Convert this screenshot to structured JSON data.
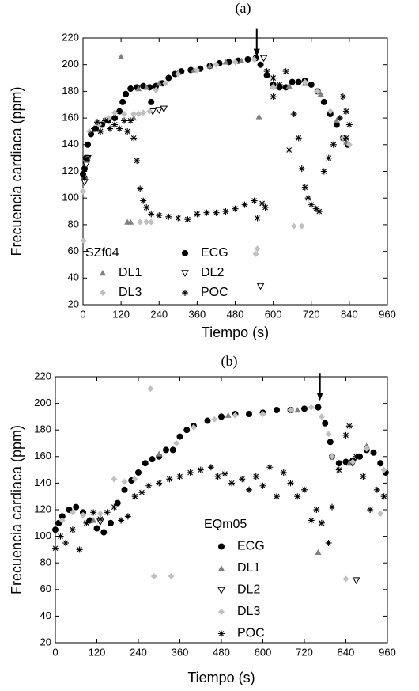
{
  "chart_data": [
    {
      "type": "scatter",
      "title": "(a)",
      "x_label": "Tiempo (s)",
      "y_label": "Frecuencia cardiaca (ppm)",
      "legend_title": "SZf04",
      "legend_columns": 2,
      "xlim": [
        0,
        960
      ],
      "xticks": [
        0,
        120,
        240,
        360,
        480,
        600,
        720,
        840,
        960
      ],
      "ylim": [
        20,
        220
      ],
      "yticks": [
        20,
        40,
        60,
        80,
        100,
        120,
        140,
        160,
        180,
        200,
        220
      ],
      "arrow": {
        "x": 548,
        "y": 206
      },
      "series": [
        {
          "name": "ECG",
          "color": "#000000",
          "marker": "circle",
          "x": [
            0,
            5,
            10,
            15,
            25,
            40,
            60,
            80,
            100,
            115,
            125,
            135,
            150,
            170,
            190,
            210,
            215,
            230,
            250,
            270,
            290,
            310,
            340,
            370,
            400,
            430,
            460,
            490,
            520,
            545,
            560,
            580,
            600,
            620,
            640,
            660,
            680,
            700,
            720,
            740,
            760,
            780,
            800,
            820,
            835
          ],
          "values": [
            118,
            122,
            130,
            140,
            148,
            152,
            155,
            158,
            160,
            165,
            172,
            178,
            182,
            183,
            184,
            183,
            172,
            184,
            186,
            190,
            193,
            195,
            196,
            197,
            199,
            201,
            202,
            203,
            204,
            205,
            200,
            192,
            185,
            183,
            183,
            187,
            187,
            188,
            185,
            180,
            172,
            163,
            155,
            145,
            140
          ]
        },
        {
          "name": "DL1",
          "color": "#808080",
          "marker": "triangle",
          "x": [
            120,
            140,
            150,
            160,
            175,
            200,
            240,
            300,
            350,
            400,
            450,
            500,
            555,
            600,
            650,
            700,
            750,
            800,
            830
          ],
          "values": [
            206,
            82,
            82,
            160,
            182,
            183,
            186,
            194,
            196,
            199,
            202,
            203,
            161,
            184,
            184,
            186,
            178,
            158,
            142
          ]
        },
        {
          "name": "DL2",
          "color": "#000000",
          "marker": "triangle-down",
          "x": [
            5,
            10,
            15,
            220,
            240,
            255,
            570,
            560
          ],
          "values": [
            112,
            125,
            130,
            165,
            166,
            167,
            205,
            34
          ]
        },
        {
          "name": "DL3",
          "color": "#c0c0c0",
          "marker": "diamond",
          "x": [
            0,
            2,
            20,
            50,
            80,
            100,
            130,
            160,
            175,
            180,
            190,
            200,
            210,
            215,
            230,
            260,
            300,
            360,
            420,
            480,
            540,
            545,
            550,
            600,
            665,
            690,
            700,
            740,
            780,
            820,
            840
          ],
          "values": [
            105,
            68,
            150,
            155,
            160,
            164,
            163,
            163,
            163,
            82,
            164,
            82,
            165,
            82,
            181,
            186,
            193,
            196,
            200,
            202,
            204,
            58,
            62,
            183,
            79,
            79,
            187,
            180,
            165,
            145,
            140
          ]
        },
        {
          "name": "POC",
          "color": "#000000",
          "marker": "asterisk",
          "x": [
            5,
            15,
            25,
            35,
            45,
            55,
            70,
            85,
            100,
            115,
            130,
            140,
            150,
            160,
            170,
            180,
            190,
            200,
            215,
            240,
            270,
            300,
            330,
            360,
            390,
            420,
            450,
            480,
            510,
            540,
            550,
            565,
            575,
            580,
            600,
            600,
            620,
            640,
            650,
            665,
            680,
            690,
            700,
            710,
            720,
            735,
            745,
            760,
            775,
            790,
            810,
            820,
            830,
            840,
            830
          ],
          "values": [
            115,
            130,
            148,
            152,
            157,
            150,
            158,
            152,
            155,
            152,
            158,
            150,
            158,
            145,
            128,
            107,
            98,
            93,
            88,
            87,
            86,
            85,
            84,
            88,
            89,
            89,
            90,
            92,
            95,
            98,
            85,
            96,
            93,
            195,
            190,
            176,
            185,
            195,
            136,
            163,
            145,
            122,
            108,
            100,
            95,
            92,
            90,
            120,
            130,
            140,
            160,
            176,
            165,
            155,
            145
          ]
        }
      ]
    },
    {
      "type": "scatter",
      "title": "(b)",
      "x_label": "Tiempo (s)",
      "y_label": "Frecuencia cardiaca (ppm)",
      "legend_title": "EQm05",
      "legend_columns": 1,
      "xlim": [
        0,
        960
      ],
      "xticks": [
        0,
        120,
        240,
        360,
        480,
        600,
        720,
        840,
        960
      ],
      "ylim": [
        20,
        220
      ],
      "yticks": [
        20,
        40,
        60,
        80,
        100,
        120,
        140,
        160,
        180,
        200,
        220
      ],
      "arrow": {
        "x": 765,
        "y": 202
      },
      "series": [
        {
          "name": "ECG",
          "color": "#000000",
          "marker": "circle",
          "x": [
            0,
            10,
            20,
            40,
            60,
            80,
            100,
            120,
            140,
            160,
            180,
            200,
            220,
            240,
            260,
            280,
            300,
            320,
            340,
            360,
            380,
            400,
            440,
            480,
            520,
            560,
            600,
            640,
            680,
            720,
            760,
            780,
            795,
            800,
            820,
            840,
            860,
            880,
            900,
            920,
            940,
            955
          ],
          "values": [
            105,
            110,
            115,
            120,
            122,
            118,
            112,
            106,
            103,
            110,
            125,
            135,
            142,
            148,
            155,
            158,
            160,
            165,
            165,
            175,
            180,
            183,
            187,
            190,
            192,
            192,
            193,
            195,
            195,
            196,
            197,
            185,
            171,
            160,
            155,
            156,
            157,
            160,
            165,
            163,
            155,
            148
          ]
        },
        {
          "name": "DL1",
          "color": "#808080",
          "marker": "triangle",
          "x": [
            760,
            110,
            300,
            500,
            700,
            850,
            900
          ],
          "values": [
            88,
            112,
            162,
            191,
            195,
            155,
            168
          ]
        },
        {
          "name": "DL2",
          "color": "#000000",
          "marker": "triangle-down",
          "x": [
            130,
            870,
            860
          ],
          "values": [
            111,
            67,
            155
          ]
        },
        {
          "name": "DL3",
          "color": "#c0c0c0",
          "marker": "diamond",
          "x": [
            20,
            50,
            80,
            130,
            170,
            200,
            230,
            275,
            285,
            335,
            350,
            400,
            460,
            520,
            600,
            680,
            740,
            770,
            790,
            800,
            840,
            860,
            900,
            940,
            950
          ],
          "values": [
            112,
            118,
            116,
            117,
            143,
            141,
            143,
            211,
            70,
            70,
            170,
            182,
            188,
            191,
            192,
            195,
            197,
            190,
            177,
            160,
            68,
            156,
            166,
            117,
            150
          ]
        },
        {
          "name": "POC",
          "color": "#000000",
          "marker": "asterisk",
          "x": [
            0,
            15,
            30,
            50,
            70,
            90,
            110,
            130,
            150,
            170,
            190,
            210,
            230,
            250,
            270,
            300,
            330,
            360,
            390,
            420,
            450,
            470,
            490,
            510,
            540,
            560,
            580,
            600,
            620,
            640,
            660,
            680,
            700,
            720,
            740,
            755,
            770,
            790,
            800,
            820,
            840,
            850,
            870,
            890,
            910,
            930,
            950
          ],
          "values": [
            91,
            100,
            95,
            105,
            90,
            110,
            118,
            113,
            118,
            122,
            112,
            115,
            130,
            133,
            138,
            140,
            143,
            145,
            148,
            150,
            152,
            145,
            147,
            140,
            143,
            135,
            145,
            138,
            152,
            130,
            148,
            140,
            130,
            135,
            112,
            120,
            110,
            95,
            122,
            150,
            176,
            183,
            160,
            145,
            120,
            135,
            130
          ]
        }
      ]
    }
  ]
}
